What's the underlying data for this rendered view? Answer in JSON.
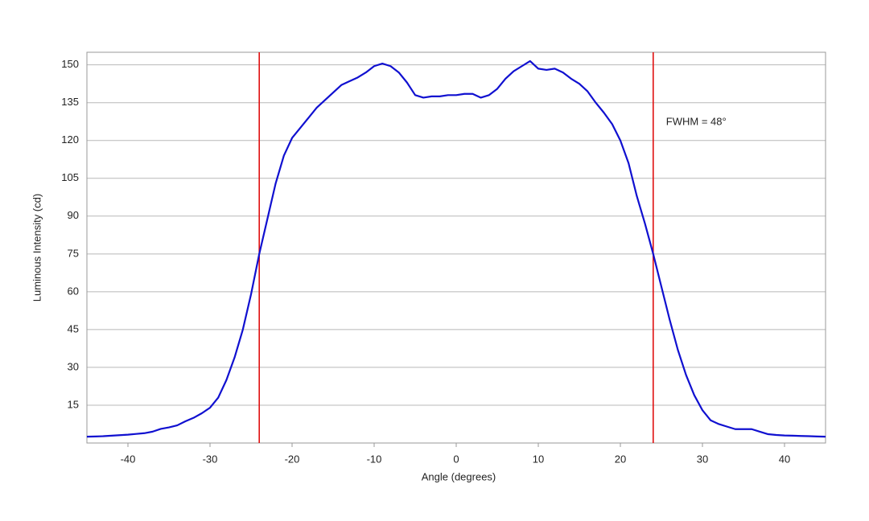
{
  "chart_data": {
    "type": "line",
    "x_label": "Angle (degrees)",
    "y_label": "Luminous Intensity (cd)",
    "annotation": "FWHM = 48°",
    "x": [
      -45,
      -44,
      -43,
      -42,
      -41,
      -40,
      -39,
      -38,
      -37,
      -36,
      -35,
      -34,
      -33,
      -32,
      -31,
      -30,
      -29,
      -28,
      -27,
      -26,
      -25,
      -24,
      -23,
      -22,
      -21,
      -20,
      -19,
      -18,
      -17,
      -16,
      -15,
      -14,
      -13,
      -12,
      -11,
      -10,
      -9,
      -8,
      -7,
      -6,
      -5,
      -4,
      -3,
      -2,
      -1,
      0,
      1,
      2,
      3,
      4,
      5,
      6,
      7,
      8,
      9,
      10,
      11,
      12,
      13,
      14,
      15,
      16,
      17,
      18,
      19,
      20,
      21,
      22,
      23,
      24,
      25,
      26,
      27,
      28,
      29,
      30,
      31,
      32,
      33,
      34,
      35,
      36,
      37,
      38,
      39,
      40,
      41,
      42,
      43,
      44,
      45
    ],
    "series": [
      {
        "name": "Luminous Intensity",
        "color": "#1010d0",
        "values": [
          2.5,
          2.6,
          2.7,
          2.9,
          3.1,
          3.3,
          3.6,
          3.9,
          4.5,
          5.6,
          6.2,
          7.0,
          8.6,
          10.0,
          11.8,
          14,
          18,
          25,
          34,
          45,
          59,
          75,
          89,
          103,
          114,
          121,
          125,
          129,
          133,
          136,
          139,
          142,
          143.5,
          145,
          147,
          149.5,
          150.5,
          149.5,
          147,
          143,
          138,
          137,
          137.5,
          137.5,
          138,
          138,
          138.5,
          138.5,
          137,
          138,
          140.5,
          144.5,
          147.5,
          149.5,
          151.5,
          148.5,
          148,
          148.5,
          147,
          144.5,
          142.5,
          139.5,
          135,
          131,
          126.5,
          120,
          111,
          98,
          87,
          75,
          62,
          49,
          37,
          27,
          19,
          13,
          9,
          7.5,
          6.5,
          5.5,
          5.5,
          5.5,
          4.5,
          3.5,
          3.2,
          3.0,
          2.9,
          2.8,
          2.7,
          2.6,
          2.5
        ]
      }
    ],
    "vlines": [
      -24,
      24
    ],
    "vline_color": "#e01010",
    "xlim": [
      -45,
      45
    ],
    "ylim": [
      0,
      155
    ],
    "xticks": [
      -40,
      -30,
      -20,
      -10,
      0,
      10,
      20,
      30,
      40
    ],
    "yticks": [
      15,
      30,
      45,
      60,
      75,
      90,
      105,
      120,
      135,
      150
    ],
    "grid": true
  }
}
